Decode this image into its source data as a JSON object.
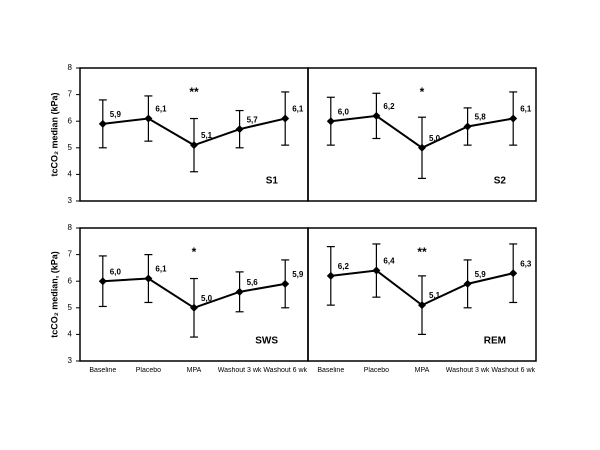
{
  "chart_data": [
    {
      "type": "line",
      "ylabel": "tcCO₂ median (kPa)",
      "label": "S1",
      "annotation": "**",
      "categories": [
        null,
        null,
        null,
        null,
        null
      ],
      "values": [
        5.9,
        6.1,
        5.1,
        5.7,
        6.1
      ],
      "value_labels": [
        "5,9",
        "6,1",
        "5,1",
        "5,7",
        "6,1"
      ],
      "errors": [
        0.9,
        0.85,
        1.0,
        0.7,
        1.0
      ],
      "ylim": [
        3,
        8
      ],
      "yticks": [
        3,
        4,
        5,
        6,
        7,
        8
      ],
      "color": "#000000"
    },
    {
      "type": "line",
      "label": "S2",
      "annotation": "*",
      "categories": [
        null,
        null,
        null,
        null,
        null
      ],
      "values": [
        6.0,
        6.2,
        5.0,
        5.8,
        6.1
      ],
      "value_labels": [
        "6,0",
        "6,2",
        "5,0",
        "5,8",
        "6,1"
      ],
      "errors": [
        0.9,
        0.85,
        1.15,
        0.7,
        1.0
      ],
      "ylim": [
        3,
        8
      ],
      "color": "#000000"
    },
    {
      "type": "line",
      "ylabel": "tcCO₂ median, (kPa)",
      "label": "SWS",
      "annotation": "*",
      "categories": [
        "Baseline",
        "Placebo",
        "MPA",
        "Washout 3 wk",
        "Washout 6 wk"
      ],
      "values": [
        6.0,
        6.1,
        5.0,
        5.6,
        5.9
      ],
      "value_labels": [
        "6,0",
        "6,1",
        "5,0",
        "5,6",
        "5,9"
      ],
      "errors": [
        0.95,
        0.9,
        1.1,
        0.75,
        0.9
      ],
      "ylim": [
        3,
        8
      ],
      "yticks": [
        3,
        4,
        5,
        6,
        7,
        8
      ],
      "color": "#000000"
    },
    {
      "type": "line",
      "label": "REM",
      "annotation": "**",
      "categories": [
        "Baseline",
        "Placebo",
        "MPA",
        "Washout 3 wk",
        "Washout 6 wk"
      ],
      "values": [
        6.2,
        6.4,
        5.1,
        5.9,
        6.3
      ],
      "value_labels": [
        "6,2",
        "6,4",
        "5,1",
        "5,9",
        "6,3"
      ],
      "errors": [
        1.1,
        1.0,
        1.1,
        0.9,
        1.1
      ],
      "ylim": [
        3,
        8
      ],
      "color": "#000000"
    }
  ]
}
